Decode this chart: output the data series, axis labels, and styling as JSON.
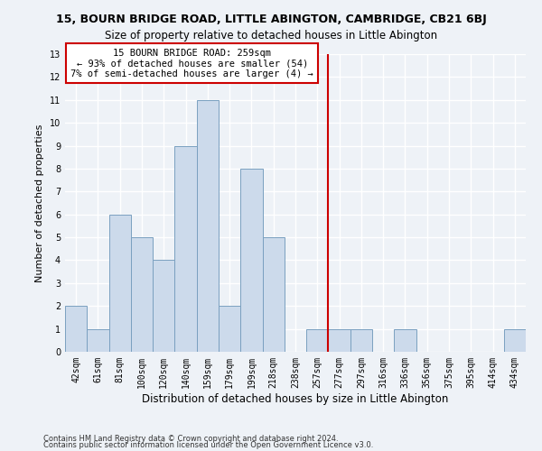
{
  "title": "15, BOURN BRIDGE ROAD, LITTLE ABINGTON, CAMBRIDGE, CB21 6BJ",
  "subtitle": "Size of property relative to detached houses in Little Abington",
  "xlabel": "Distribution of detached houses by size in Little Abington",
  "ylabel": "Number of detached properties",
  "categories": [
    "42sqm",
    "61sqm",
    "81sqm",
    "100sqm",
    "120sqm",
    "140sqm",
    "159sqm",
    "179sqm",
    "199sqm",
    "218sqm",
    "238sqm",
    "257sqm",
    "277sqm",
    "297sqm",
    "316sqm",
    "336sqm",
    "356sqm",
    "375sqm",
    "395sqm",
    "414sqm",
    "434sqm"
  ],
  "values": [
    2,
    1,
    6,
    5,
    4,
    9,
    11,
    2,
    8,
    5,
    0,
    1,
    1,
    1,
    0,
    1,
    0,
    0,
    0,
    0,
    1
  ],
  "bar_color": "#ccdaeb",
  "bar_edge_color": "#7aa0c0",
  "highlight_line_index": 11,
  "highlight_line_color": "#cc0000",
  "annotation_text": "15 BOURN BRIDGE ROAD: 259sqm\n← 93% of detached houses are smaller (54)\n7% of semi-detached houses are larger (4) →",
  "annotation_box_edgecolor": "#cc0000",
  "ylim": [
    0,
    13
  ],
  "yticks": [
    0,
    1,
    2,
    3,
    4,
    5,
    6,
    7,
    8,
    9,
    10,
    11,
    12,
    13
  ],
  "footer1": "Contains HM Land Registry data © Crown copyright and database right 2024.",
  "footer2": "Contains public sector information licensed under the Open Government Licence v3.0.",
  "background_color": "#eef2f7",
  "grid_color": "#ffffff",
  "title_fontsize": 9,
  "subtitle_fontsize": 8.5,
  "axis_label_fontsize": 8,
  "tick_fontsize": 7,
  "annotation_fontsize": 7.5,
  "footer_fontsize": 6
}
